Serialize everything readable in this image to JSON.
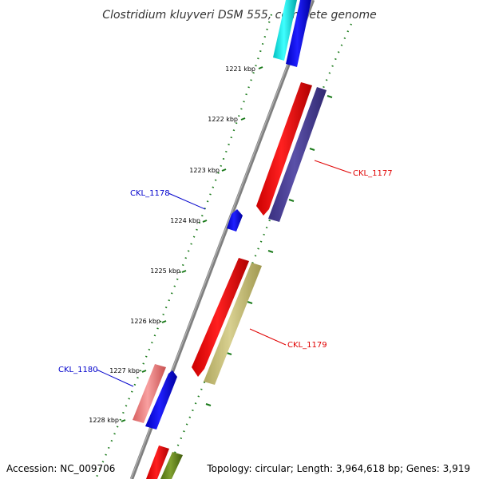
{
  "title": "Clostridium kluyveri DSM 555, complete genome",
  "accession": "Accession: NC_009706",
  "summary": "Topology: circular; Length: 3,964,618 bp; Genes: 3,919",
  "ruler": [
    "1221 kbp",
    "1222 kbp",
    "1223 kbp",
    "1224 kbp",
    "1225 kbp",
    "1226 kbp",
    "1227 kbp",
    "1228 kbp"
  ],
  "gene_labels": {
    "ckl_1177": "CKL_1177",
    "ckl_1178": "CKL_1178",
    "ckl_1179": "CKL_1179",
    "ckl_1180": "CKL_1180"
  },
  "colors": {
    "backbone": "#888888",
    "tick": "#1a7a1a",
    "forward_cds": "#ff0000",
    "forward_gene": "#0000ff",
    "reverse_gene": "#4a4090",
    "rna_like": "#c8c080",
    "pink": "#f08080",
    "cyan": "#00e5e5",
    "olive": "#6b8e23",
    "red_label": "#e00000",
    "blue_label": "#0000cc"
  }
}
